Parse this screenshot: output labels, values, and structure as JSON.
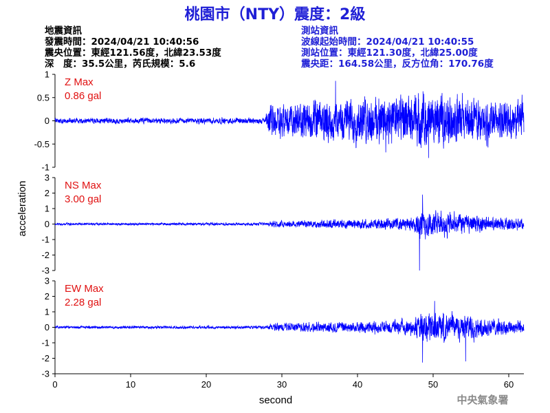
{
  "title": "桃園市（NTY）震度：2級",
  "quake_info": {
    "heading": "地震資訊",
    "origin_time": "發震時間：2024/04/21 10:40:56",
    "epicenter": "震央位置：東經121.56度，北緯23.53度",
    "depth_mag": "深　度：35.5公里，芮氏規模：5.6"
  },
  "station_info": {
    "heading": "測站資訊",
    "wave_start": "波線起始時間：2024/04/21 10:40:55",
    "location": "測站位置：東經121.30度，北緯25.00度",
    "distance": "震央距：164.58公里，反方位角：170.76度"
  },
  "credit": "中央氣象署",
  "colors": {
    "trace": "#0000ff",
    "title": "#1f1fd6",
    "max_label": "#e01010"
  },
  "chart_data": {
    "type": "line",
    "xlabel": "second",
    "ylabel": "acceleration",
    "xlim": [
      0,
      62
    ],
    "xticks": [
      0,
      10,
      20,
      30,
      40,
      50,
      60
    ],
    "xtick_labels": [
      "0",
      "10",
      "20",
      "30",
      "40",
      "50",
      "60"
    ],
    "panels": [
      {
        "name": "Z",
        "max_label": "Z Max",
        "max_value": "0.86 gal",
        "ylim": [
          -1,
          1
        ],
        "yticks": [
          -1,
          -0.5,
          0,
          0.5,
          1
        ],
        "ytick_labels": [
          "-1",
          "-0.5",
          "0",
          "0.5",
          "1"
        ],
        "envelope": [
          {
            "t": 0,
            "amp": 0.08
          },
          {
            "t": 27.8,
            "amp": 0.09
          },
          {
            "t": 28.4,
            "amp": 0.5
          },
          {
            "t": 32,
            "amp": 0.55
          },
          {
            "t": 36,
            "amp": 0.6
          },
          {
            "t": 42,
            "amp": 0.7
          },
          {
            "t": 48,
            "amp": 0.75
          },
          {
            "t": 52,
            "amp": 0.72
          },
          {
            "t": 58,
            "amp": 0.6
          },
          {
            "t": 62,
            "amp": 0.6
          }
        ],
        "peaks": [
          {
            "t": 37.1,
            "v": 0.86
          },
          {
            "t": 49.4,
            "v": -0.8
          }
        ]
      },
      {
        "name": "NS",
        "max_label": "NS Max",
        "max_value": "3.00 gal",
        "ylim": [
          -3,
          3
        ],
        "yticks": [
          -3,
          -2,
          -1,
          0,
          1,
          2,
          3
        ],
        "ytick_labels": [
          "-3",
          "-2",
          "-1",
          "0",
          "1",
          "2",
          "3"
        ],
        "envelope": [
          {
            "t": 0,
            "amp": 0.1
          },
          {
            "t": 28,
            "amp": 0.12
          },
          {
            "t": 29,
            "amp": 0.3
          },
          {
            "t": 35,
            "amp": 0.35
          },
          {
            "t": 42,
            "amp": 0.45
          },
          {
            "t": 47.5,
            "amp": 0.6
          },
          {
            "t": 48.3,
            "amp": 1.4
          },
          {
            "t": 50,
            "amp": 1.2
          },
          {
            "t": 54,
            "amp": 0.9
          },
          {
            "t": 58,
            "amp": 0.6
          },
          {
            "t": 62,
            "amp": 0.5
          }
        ],
        "peaks": [
          {
            "t": 48.2,
            "v": -3.0
          },
          {
            "t": 48.6,
            "v": 1.9
          }
        ]
      },
      {
        "name": "EW",
        "max_label": "EW Max",
        "max_value": "2.28 gal",
        "ylim": [
          -3,
          3
        ],
        "yticks": [
          -3,
          -2,
          -1,
          0,
          1,
          2,
          3
        ],
        "ytick_labels": [
          "-3",
          "-2",
          "-1",
          "0",
          "1",
          "2",
          "3"
        ],
        "envelope": [
          {
            "t": 0,
            "amp": 0.12
          },
          {
            "t": 28,
            "amp": 0.14
          },
          {
            "t": 29,
            "amp": 0.35
          },
          {
            "t": 35,
            "amp": 0.45
          },
          {
            "t": 42,
            "amp": 0.5
          },
          {
            "t": 47.5,
            "amp": 0.7
          },
          {
            "t": 48.3,
            "amp": 1.4
          },
          {
            "t": 50,
            "amp": 1.3
          },
          {
            "t": 54,
            "amp": 1.1
          },
          {
            "t": 58,
            "amp": 0.7
          },
          {
            "t": 62,
            "amp": 0.6
          }
        ],
        "peaks": [
          {
            "t": 48.6,
            "v": -2.28
          },
          {
            "t": 50.2,
            "v": 1.7
          },
          {
            "t": 54.3,
            "v": -2.2
          }
        ]
      }
    ]
  }
}
